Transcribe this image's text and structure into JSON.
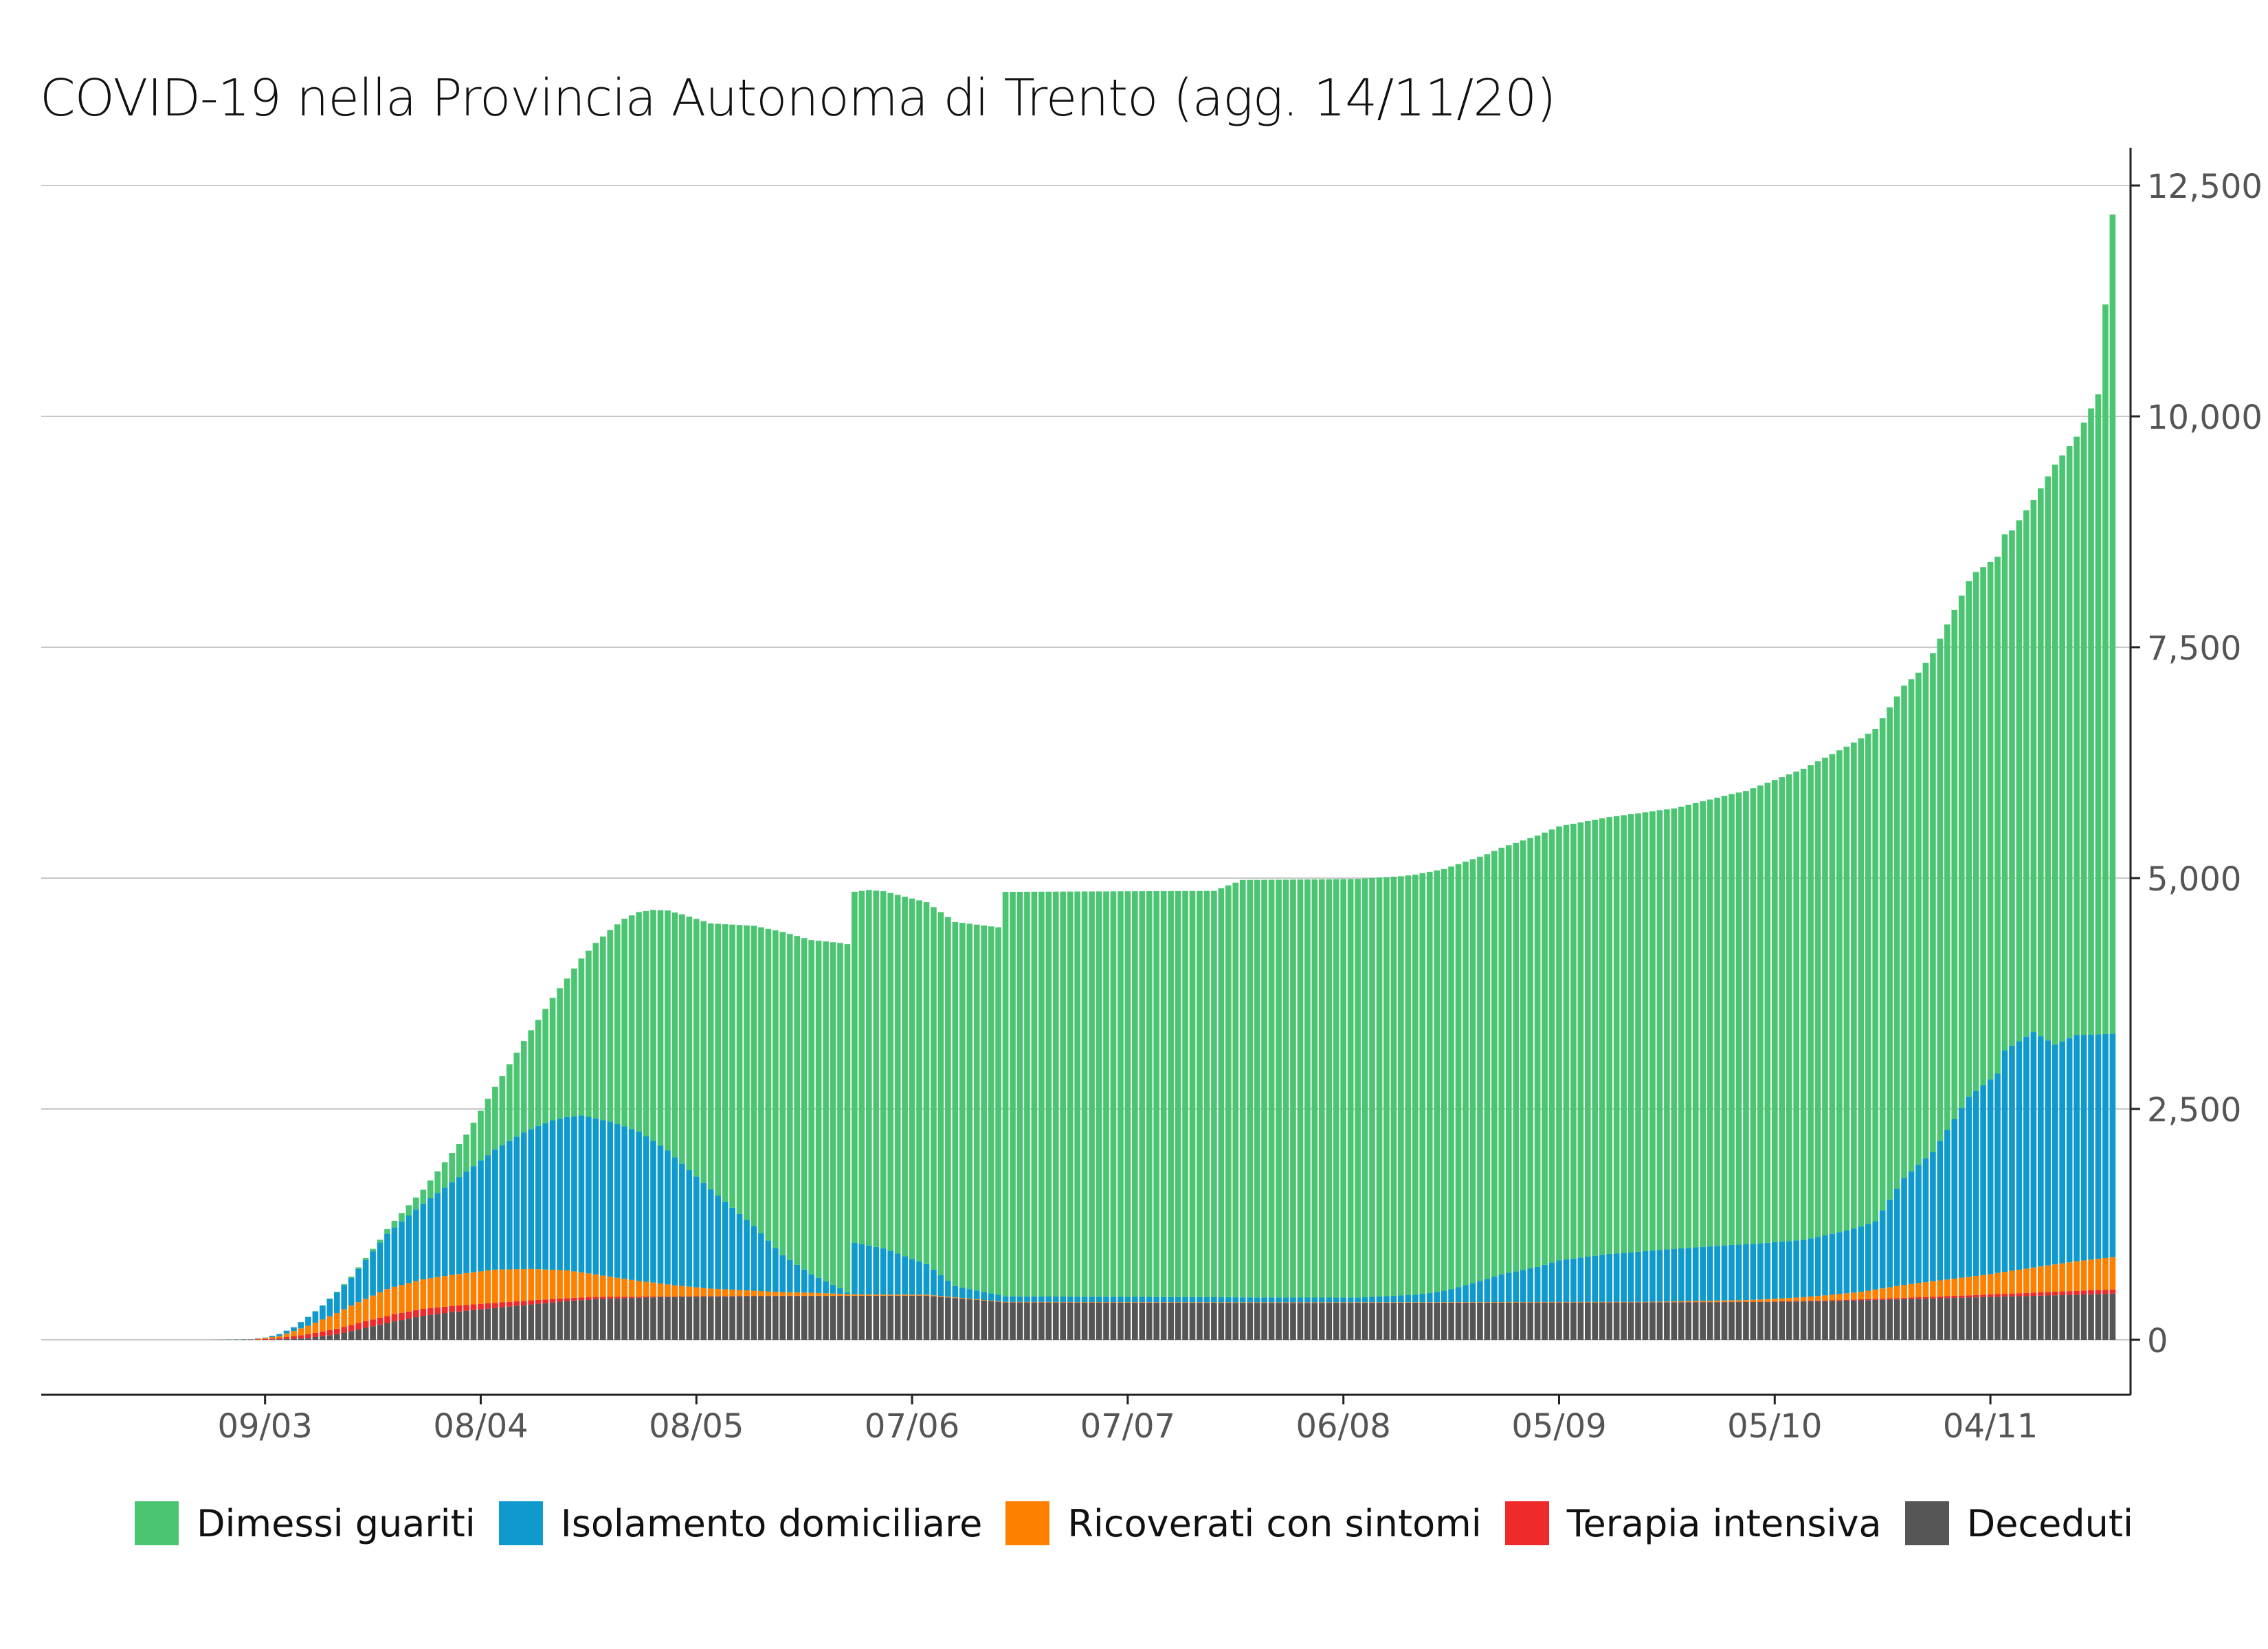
{
  "chart_data": {
    "type": "bar",
    "title": "COVID-19 nella Provincia Autonoma di Trento (agg. 14/11/20)",
    "xlabel": "",
    "ylabel": "",
    "ylim": [
      0,
      12500
    ],
    "y_axis_side": "right",
    "y_ticks": [
      "0",
      "2,500",
      "5,000",
      "7,500",
      "10,000",
      "12,500"
    ],
    "x_tick_labels": [
      "09/03",
      "08/04",
      "08/05",
      "07/06",
      "07/07",
      "06/08",
      "05/09",
      "05/10",
      "04/11"
    ],
    "x_tick_days": [
      8,
      38,
      68,
      98,
      128,
      158,
      188,
      218,
      248
    ],
    "x_start_date": "2020-03-01",
    "x_end_date": "2020-11-14",
    "grid": true,
    "legend_position": "bottom",
    "series": [
      {
        "name": "Dimessi guariti",
        "color": "#4CC573",
        "knots": [
          [
            0,
            0
          ],
          [
            10,
            0
          ],
          [
            18,
            5
          ],
          [
            24,
            30
          ],
          [
            30,
            150
          ],
          [
            36,
            400
          ],
          [
            41,
            750
          ],
          [
            46,
            1150
          ],
          [
            50,
            1500
          ],
          [
            54,
            1900
          ],
          [
            58,
            2250
          ],
          [
            62,
            2500
          ],
          [
            66,
            2700
          ],
          [
            70,
            2880
          ],
          [
            80,
            3500
          ],
          [
            90,
            3800
          ],
          [
            92,
            3850
          ],
          [
            100,
            3920
          ],
          [
            110,
            3980
          ],
          [
            111,
            4380
          ],
          [
            140,
            4400
          ],
          [
            144,
            4520
          ],
          [
            166,
            4540
          ],
          [
            178,
            4600
          ],
          [
            188,
            4700
          ],
          [
            204,
            4770
          ],
          [
            214,
            4910
          ],
          [
            224,
            5150
          ],
          [
            232,
            5330
          ],
          [
            238,
            5330
          ],
          [
            246,
            5620
          ],
          [
            251,
            5580
          ],
          [
            254,
            5760
          ],
          [
            257,
            6280
          ],
          [
            260,
            6480
          ],
          [
            263,
            6930
          ],
          [
            265,
            8870
          ]
        ]
      },
      {
        "name": "Isolamento domiciliare",
        "color": "#0F99CC",
        "knots": [
          [
            0,
            0
          ],
          [
            8,
            5
          ],
          [
            12,
            40
          ],
          [
            16,
            150
          ],
          [
            20,
            300
          ],
          [
            25,
            600
          ],
          [
            30,
            820
          ],
          [
            35,
            1050
          ],
          [
            40,
            1300
          ],
          [
            44,
            1480
          ],
          [
            48,
            1620
          ],
          [
            52,
            1700
          ],
          [
            56,
            1680
          ],
          [
            60,
            1620
          ],
          [
            64,
            1450
          ],
          [
            68,
            1200
          ],
          [
            72,
            950
          ],
          [
            76,
            700
          ],
          [
            80,
            400
          ],
          [
            84,
            200
          ],
          [
            88,
            60
          ],
          [
            89,
            20
          ],
          [
            90,
            560
          ],
          [
            94,
            500
          ],
          [
            100,
            330
          ],
          [
            104,
            120
          ],
          [
            110,
            70
          ],
          [
            111,
            60
          ],
          [
            160,
            50
          ],
          [
            168,
            80
          ],
          [
            172,
            120
          ],
          [
            178,
            250
          ],
          [
            180,
            300
          ],
          [
            185,
            380
          ],
          [
            188,
            450
          ],
          [
            195,
            520
          ],
          [
            202,
            560
          ],
          [
            212,
            600
          ],
          [
            222,
            620
          ],
          [
            228,
            680
          ],
          [
            232,
            740
          ],
          [
            236,
            1160
          ],
          [
            240,
            1400
          ],
          [
            245,
            1950
          ],
          [
            249,
            2160
          ],
          [
            250,
            2400
          ],
          [
            254,
            2550
          ],
          [
            257,
            2380
          ],
          [
            260,
            2450
          ],
          [
            265,
            2420
          ]
        ]
      },
      {
        "name": "Ricoverati con sintomi",
        "color": "#FE8000",
        "knots": [
          [
            0,
            0
          ],
          [
            6,
            2
          ],
          [
            10,
            20
          ],
          [
            15,
            110
          ],
          [
            20,
            210
          ],
          [
            25,
            290
          ],
          [
            30,
            320
          ],
          [
            35,
            340
          ],
          [
            40,
            360
          ],
          [
            45,
            340
          ],
          [
            50,
            300
          ],
          [
            55,
            230
          ],
          [
            60,
            170
          ],
          [
            65,
            120
          ],
          [
            70,
            80
          ],
          [
            75,
            60
          ],
          [
            80,
            40
          ],
          [
            85,
            30
          ],
          [
            90,
            15
          ],
          [
            100,
            10
          ],
          [
            110,
            5
          ],
          [
            150,
            5
          ],
          [
            200,
            5
          ],
          [
            214,
            18
          ],
          [
            222,
            40
          ],
          [
            230,
            80
          ],
          [
            236,
            140
          ],
          [
            242,
            180
          ],
          [
            248,
            220
          ],
          [
            255,
            280
          ],
          [
            260,
            320
          ],
          [
            265,
            350
          ]
        ]
      },
      {
        "name": "Terapia intensiva",
        "color": "#EE2A2A",
        "knots": [
          [
            0,
            0
          ],
          [
            6,
            2
          ],
          [
            10,
            15
          ],
          [
            14,
            40
          ],
          [
            18,
            60
          ],
          [
            22,
            72
          ],
          [
            26,
            78
          ],
          [
            30,
            75
          ],
          [
            35,
            65
          ],
          [
            40,
            55
          ],
          [
            45,
            45
          ],
          [
            50,
            32
          ],
          [
            55,
            22
          ],
          [
            60,
            12
          ],
          [
            65,
            6
          ],
          [
            70,
            4
          ],
          [
            80,
            2
          ],
          [
            90,
            1
          ],
          [
            200,
            1
          ],
          [
            216,
            3
          ],
          [
            226,
            8
          ],
          [
            236,
            15
          ],
          [
            246,
            25
          ],
          [
            256,
            38
          ],
          [
            265,
            45
          ]
        ]
      },
      {
        "name": "Deceduti",
        "color": "#555555",
        "knots": [
          [
            0,
            0
          ],
          [
            8,
            0
          ],
          [
            10,
            5
          ],
          [
            14,
            20
          ],
          [
            18,
            60
          ],
          [
            22,
            130
          ],
          [
            26,
            200
          ],
          [
            30,
            260
          ],
          [
            34,
            300
          ],
          [
            38,
            330
          ],
          [
            42,
            360
          ],
          [
            46,
            390
          ],
          [
            50,
            420
          ],
          [
            54,
            440
          ],
          [
            58,
            450
          ],
          [
            62,
            460
          ],
          [
            66,
            465
          ],
          [
            70,
            470
          ],
          [
            80,
            475
          ],
          [
            90,
            476
          ],
          [
            100,
            478
          ],
          [
            111,
            405
          ],
          [
            150,
            400
          ],
          [
            200,
            405
          ],
          [
            216,
            410
          ],
          [
            226,
            420
          ],
          [
            236,
            440
          ],
          [
            246,
            460
          ],
          [
            256,
            480
          ],
          [
            265,
            500
          ]
        ]
      }
    ]
  },
  "legend": {
    "items": [
      {
        "label": "Dimessi guariti",
        "color": "#4CC573"
      },
      {
        "label": "Isolamento domiciliare",
        "color": "#0F99CC"
      },
      {
        "label": "Ricoverati con sintomi",
        "color": "#FE8000"
      },
      {
        "label": "Terapia intensiva",
        "color": "#EE2A2A"
      },
      {
        "label": "Deceduti",
        "color": "#555555"
      }
    ]
  }
}
